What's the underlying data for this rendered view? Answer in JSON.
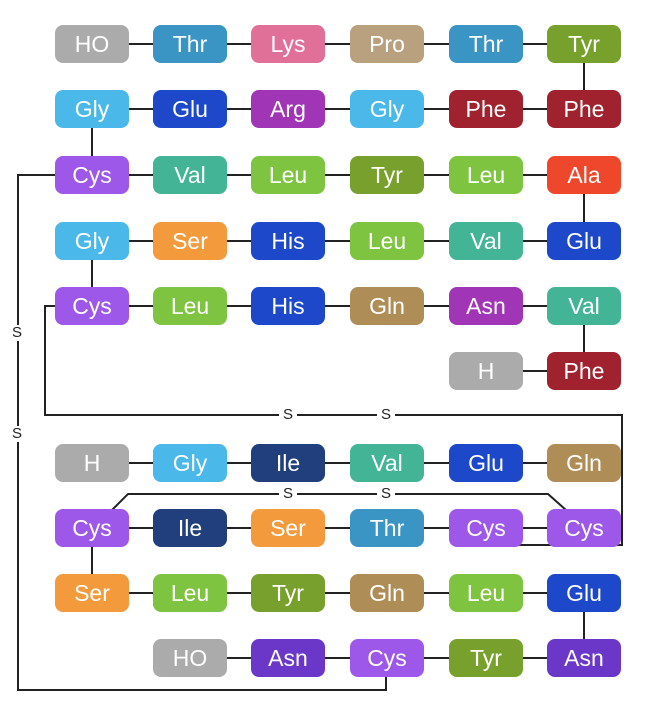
{
  "colors": {
    "grey": "#ababab",
    "blue": "#3a95c5",
    "pink": "#e07098",
    "tan": "#b9a07f",
    "olive": "#77a02d",
    "sky": "#4ab9ea",
    "royal": "#1c48c9",
    "magenta": "#a036b5",
    "maroon": "#a0222e",
    "purple": "#9d58e9",
    "teal": "#43b596",
    "lime": "#7fc440",
    "red": "#ef472c",
    "orange": "#f29a3c",
    "navy": "#203f7c",
    "brown": "#ae8d57",
    "violet": "#6b37c8",
    "line": "#222222"
  },
  "chains": {
    "b": [
      [
        {
          "label": "HO",
          "color": "grey"
        },
        {
          "label": "Thr",
          "color": "blue"
        },
        {
          "label": "Lys",
          "color": "pink"
        },
        {
          "label": "Pro",
          "color": "tan"
        },
        {
          "label": "Thr",
          "color": "blue"
        },
        {
          "label": "Tyr",
          "color": "olive"
        }
      ],
      [
        {
          "label": "Gly",
          "color": "sky"
        },
        {
          "label": "Glu",
          "color": "royal"
        },
        {
          "label": "Arg",
          "color": "magenta"
        },
        {
          "label": "Gly",
          "color": "sky"
        },
        {
          "label": "Phe",
          "color": "maroon"
        },
        {
          "label": "Phe",
          "color": "maroon"
        }
      ],
      [
        {
          "label": "Cys",
          "color": "purple"
        },
        {
          "label": "Val",
          "color": "teal"
        },
        {
          "label": "Leu",
          "color": "lime"
        },
        {
          "label": "Tyr",
          "color": "olive"
        },
        {
          "label": "Leu",
          "color": "lime"
        },
        {
          "label": "Ala",
          "color": "red"
        }
      ],
      [
        {
          "label": "Gly",
          "color": "sky"
        },
        {
          "label": "Ser",
          "color": "orange"
        },
        {
          "label": "His",
          "color": "royal"
        },
        {
          "label": "Leu",
          "color": "lime"
        },
        {
          "label": "Val",
          "color": "teal"
        },
        {
          "label": "Glu",
          "color": "royal"
        }
      ],
      [
        {
          "label": "Cys",
          "color": "purple"
        },
        {
          "label": "Leu",
          "color": "lime"
        },
        {
          "label": "His",
          "color": "royal"
        },
        {
          "label": "Gln",
          "color": "brown"
        },
        {
          "label": "Asn",
          "color": "magenta"
        },
        {
          "label": "Val",
          "color": "teal"
        }
      ],
      [
        null,
        null,
        null,
        null,
        {
          "label": "H",
          "color": "grey"
        },
        {
          "label": "Phe",
          "color": "maroon"
        }
      ]
    ],
    "a": [
      [
        {
          "label": "H",
          "color": "grey"
        },
        {
          "label": "Gly",
          "color": "sky"
        },
        {
          "label": "Ile",
          "color": "navy"
        },
        {
          "label": "Val",
          "color": "teal"
        },
        {
          "label": "Glu",
          "color": "royal"
        },
        {
          "label": "Gln",
          "color": "brown"
        }
      ],
      [
        {
          "label": "Cys",
          "color": "purple"
        },
        {
          "label": "Ile",
          "color": "navy"
        },
        {
          "label": "Ser",
          "color": "orange"
        },
        {
          "label": "Thr",
          "color": "blue"
        },
        {
          "label": "Cys",
          "color": "purple"
        },
        {
          "label": "Cys",
          "color": "purple"
        }
      ],
      [
        {
          "label": "Ser",
          "color": "orange"
        },
        {
          "label": "Leu",
          "color": "lime"
        },
        {
          "label": "Tyr",
          "color": "olive"
        },
        {
          "label": "Gln",
          "color": "brown"
        },
        {
          "label": "Leu",
          "color": "lime"
        },
        {
          "label": "Glu",
          "color": "royal"
        }
      ],
      [
        null,
        {
          "label": "HO",
          "color": "grey"
        },
        {
          "label": "Asn",
          "color": "violet"
        },
        {
          "label": "Cys",
          "color": "purple"
        },
        {
          "label": "Tyr",
          "color": "olive"
        },
        {
          "label": "Asn",
          "color": "violet"
        }
      ]
    ]
  },
  "disulfide_labels": {
    "outer_left_upper": "S",
    "outer_left_lower": "S",
    "interchain_left": "S",
    "interchain_right": "S",
    "intrachain_left": "S",
    "intrachain_right": "S"
  }
}
